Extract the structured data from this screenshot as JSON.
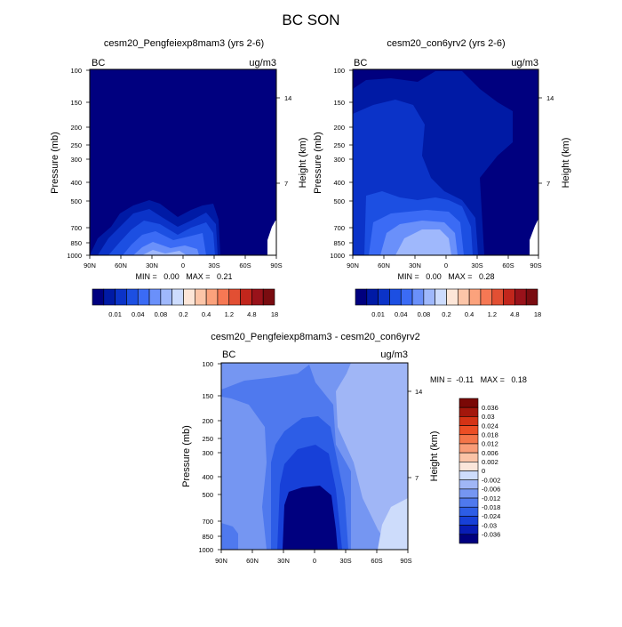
{
  "figure": {
    "title": "BC SON"
  },
  "colors": {
    "abs_levels": [
      "#00007f",
      "#001aa5",
      "#0b33c8",
      "#1c4fe2",
      "#3b6bf5",
      "#6a90fa",
      "#9fb8fc",
      "#cddcfe",
      "#fde6d8",
      "#fcc5a8",
      "#fba27c",
      "#f67854",
      "#e24f33",
      "#c2261c",
      "#99121a",
      "#7a0c10"
    ],
    "diff_levels": [
      "#00007f",
      "#081cb5",
      "#1740d8",
      "#2d5de6",
      "#4f79ee",
      "#7596f2",
      "#a0b6f6",
      "#cddcfb",
      "#fbe6da",
      "#fbc3a6",
      "#f99c77",
      "#f47549",
      "#ec4e24",
      "#d43315",
      "#a3170c",
      "#7a0806"
    ]
  },
  "chart_data": [
    {
      "type": "contour",
      "title": "cesm20_Pengfeiexp8mam3 (yrs 2-6)",
      "corner_left": "BC",
      "corner_right": "ug/m3",
      "ylabel": "Pressure (mb)",
      "y2label": "Height (km)",
      "x_ticks": [
        "90N",
        "60N",
        "30N",
        "0",
        "30S",
        "60S",
        "90S"
      ],
      "y_ticks": [
        "100",
        "150",
        "200",
        "250",
        "300",
        "400",
        "500",
        "700",
        "850",
        "1000"
      ],
      "y2_ticks": [
        "14",
        "7"
      ],
      "stats": "MIN =   0.00   MAX =   0.21",
      "colorbar_labels": [
        "0.01",
        "0.04",
        "0.08",
        "0.2",
        "0.4",
        "1.2",
        "4.8",
        "18"
      ]
    },
    {
      "type": "contour",
      "title": "cesm20_con6yrv2 (yrs 2-6)",
      "corner_left": "BC",
      "corner_right": "ug/m3",
      "ylabel": "Pressure (mb)",
      "y2label": "Height (km)",
      "x_ticks": [
        "90N",
        "60N",
        "30N",
        "0",
        "30S",
        "60S",
        "90S"
      ],
      "y_ticks": [
        "100",
        "150",
        "200",
        "250",
        "300",
        "400",
        "500",
        "700",
        "850",
        "1000"
      ],
      "y2_ticks": [
        "14",
        "7"
      ],
      "stats": "MIN =   0.00   MAX =   0.28",
      "colorbar_labels": [
        "0.01",
        "0.04",
        "0.08",
        "0.2",
        "0.4",
        "1.2",
        "4.8",
        "18"
      ]
    },
    {
      "type": "contour",
      "title": "cesm20_Pengfeiexp8mam3 - cesm20_con6yrv2",
      "corner_left": "BC",
      "corner_right": "ug/m3",
      "ylabel": "Pressure (mb)",
      "y2label": "Height (km)",
      "x_ticks": [
        "90N",
        "60N",
        "30N",
        "0",
        "30S",
        "60S",
        "90S"
      ],
      "y_ticks": [
        "100",
        "150",
        "200",
        "250",
        "300",
        "400",
        "500",
        "700",
        "850",
        "1000"
      ],
      "y2_ticks": [
        "14",
        "7"
      ],
      "stats": "MIN =  -0.11   MAX =   0.18",
      "colorbar_labels": [
        "0.036",
        "0.03",
        "0.024",
        "0.018",
        "0.012",
        "0.006",
        "0.002",
        "0",
        "-0.002",
        "-0.006",
        "-0.012",
        "-0.018",
        "-0.024",
        "-0.03",
        "-0.036"
      ]
    }
  ]
}
